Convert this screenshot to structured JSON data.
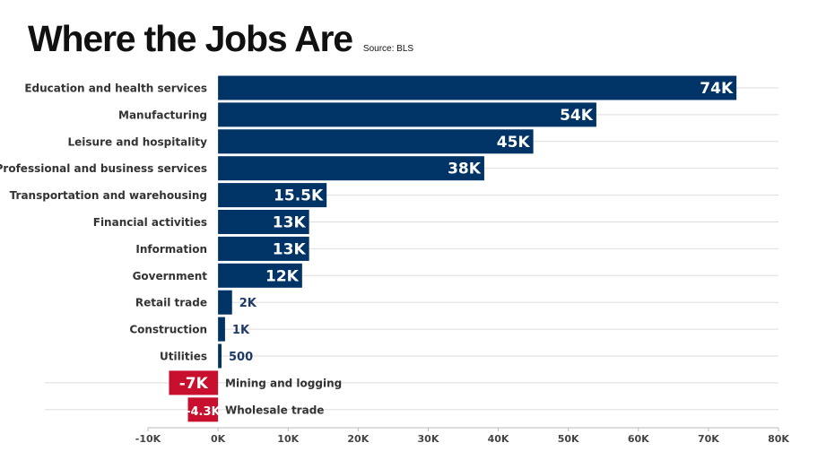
{
  "header": {
    "title": "Where the Jobs Are",
    "source": "Source: BLS"
  },
  "chart_data": {
    "type": "bar",
    "orientation": "horizontal",
    "categories": [
      "Education and health services",
      "Manufacturing",
      "Leisure and hospitality",
      "Professional and business services",
      "Transportation and warehousing",
      "Financial activities",
      "Information",
      "Government",
      "Retail trade",
      "Construction",
      "Utilities",
      "Mining and logging",
      "Wholesale trade"
    ],
    "values": [
      74000,
      54000,
      45000,
      38000,
      15500,
      13000,
      13000,
      12000,
      2000,
      1000,
      500,
      -7000,
      -4300
    ],
    "value_labels": [
      "74K",
      "54K",
      "45K",
      "38K",
      "15.5K",
      "13K",
      "13K",
      "12K",
      "2K",
      "1K",
      "500",
      "-7K",
      "-4.3K"
    ],
    "xlim": [
      -10000,
      80000
    ],
    "x_ticks": [
      -10000,
      0,
      10000,
      20000,
      30000,
      40000,
      50000,
      60000,
      70000,
      80000
    ],
    "x_tick_labels": [
      "-10K",
      "0K",
      "10K",
      "20K",
      "30K",
      "40K",
      "50K",
      "60K",
      "70K",
      "80K"
    ],
    "grid": true,
    "colors": {
      "positive": "#003366",
      "negative": "#c8102e"
    }
  }
}
